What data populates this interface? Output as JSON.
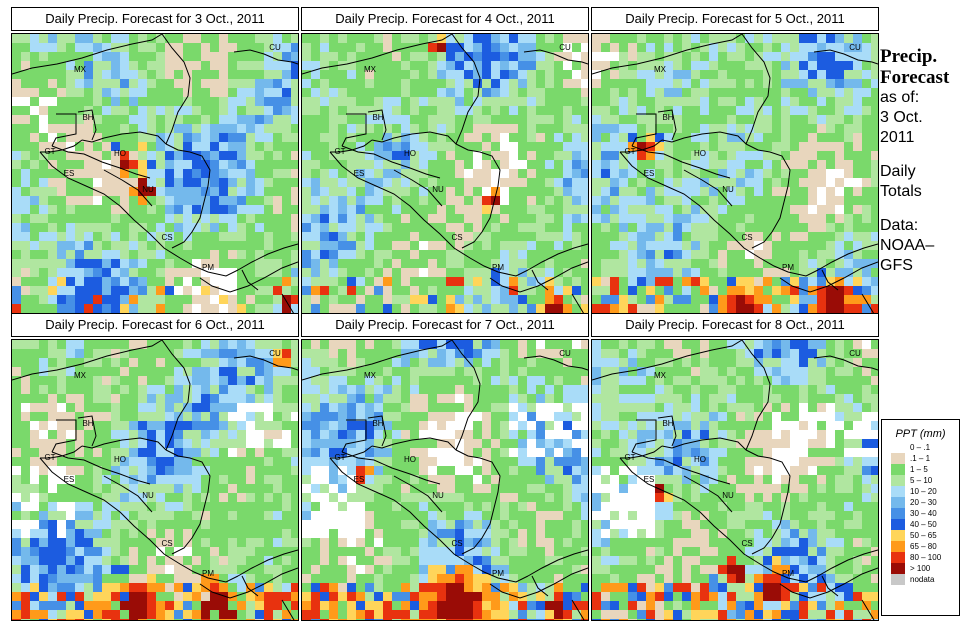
{
  "panels": [
    {
      "title": "Daily Precip. Forecast for  3 Oct., 2011",
      "seed": 11,
      "band": 0.25,
      "heavy": "honduras-nicaragua"
    },
    {
      "title": "Daily Precip. Forecast for  4 Oct., 2011",
      "seed": 23,
      "band": 0.3,
      "heavy": "mexico-north"
    },
    {
      "title": "Daily Precip. Forecast for  5 Oct., 2011",
      "seed": 37,
      "band": 0.6,
      "heavy": "guatemala"
    },
    {
      "title": "Daily Precip. Forecast for  6 Oct., 2011",
      "seed": 41,
      "band": 0.85,
      "heavy": "cuba"
    },
    {
      "title": "Daily Precip. Forecast for  7 Oct., 2011",
      "seed": 53,
      "band": 0.9,
      "heavy": "pacific"
    },
    {
      "title": "Daily Precip. Forecast for  8 Oct., 2011",
      "seed": 67,
      "band": 0.7,
      "heavy": "costa-rica-panama"
    }
  ],
  "country_labels": [
    "MX",
    "BH",
    "GT",
    "HO",
    "ES",
    "NU",
    "CS",
    "PM",
    "CU"
  ],
  "sidebar": {
    "heading_1": "Precip.",
    "heading_2": "Forecast",
    "asof_1": "as of:",
    "asof_2": "3 Oct.",
    "asof_3": "2011",
    "totals_1": "Daily",
    "totals_2": "Totals",
    "data_1": "Data:",
    "data_2": "NOAA–",
    "data_3": "GFS"
  },
  "legend": {
    "title": "PPT (mm)",
    "items": [
      {
        "label": "0 – .1",
        "color": "#ffffff"
      },
      {
        "label": ".1 – 1",
        "color": "#e8d6bd"
      },
      {
        "label": "1 – 5",
        "color": "#7ad96b"
      },
      {
        "label": "5 – 10",
        "color": "#b0e6a0"
      },
      {
        "label": "10 – 20",
        "color": "#a9dcf8"
      },
      {
        "label": "20 – 30",
        "color": "#74b9ec"
      },
      {
        "label": "30 – 40",
        "color": "#4690e6"
      },
      {
        "label": "40 – 50",
        "color": "#1c5ce0"
      },
      {
        "label": "50 – 65",
        "color": "#ffd55a"
      },
      {
        "label": "65 – 80",
        "color": "#ff9a1a"
      },
      {
        "label": "80 – 100",
        "color": "#e8320f"
      },
      {
        "label": "> 100",
        "color": "#9a0c06"
      },
      {
        "label": "nodata",
        "color": "#c8c8c8"
      }
    ]
  }
}
